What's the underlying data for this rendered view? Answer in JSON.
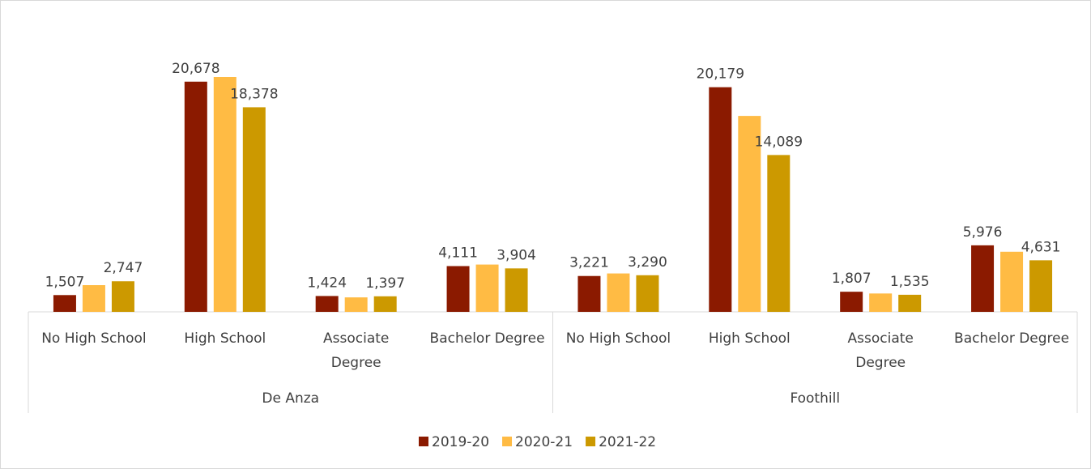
{
  "chart_data": {
    "type": "bar",
    "groups": [
      {
        "label": "De Anza",
        "categories": [
          "No High School",
          "High School",
          [
            "Associate",
            "Degree"
          ],
          "Bachelor Degree"
        ]
      },
      {
        "label": "Foothill",
        "categories": [
          "No High School",
          "High School",
          [
            "Associate",
            "Degree"
          ],
          "Bachelor Degree"
        ]
      }
    ],
    "series": [
      {
        "name": "2019-20",
        "color": "#8b1a00",
        "values": [
          1507,
          20678,
          1424,
          4111,
          3221,
          20179,
          1807,
          5976
        ],
        "value_labels": [
          "1,507",
          "20,678",
          "1,424",
          "4,111",
          "3,221",
          "20,179",
          "1,807",
          "5,976"
        ]
      },
      {
        "name": "2020-21",
        "color": "#ffbb44",
        "values": [
          2400,
          21100,
          1300,
          4250,
          3450,
          17600,
          1650,
          5400
        ]
      },
      {
        "name": "2021-22",
        "color": "#cc9900",
        "values": [
          2747,
          18378,
          1397,
          3904,
          3290,
          14089,
          1535,
          4631
        ],
        "value_labels": [
          "2,747",
          "18,378",
          "1,397",
          "3,904",
          "3,290",
          "14,089",
          "1,535",
          "4,631"
        ]
      }
    ]
  }
}
